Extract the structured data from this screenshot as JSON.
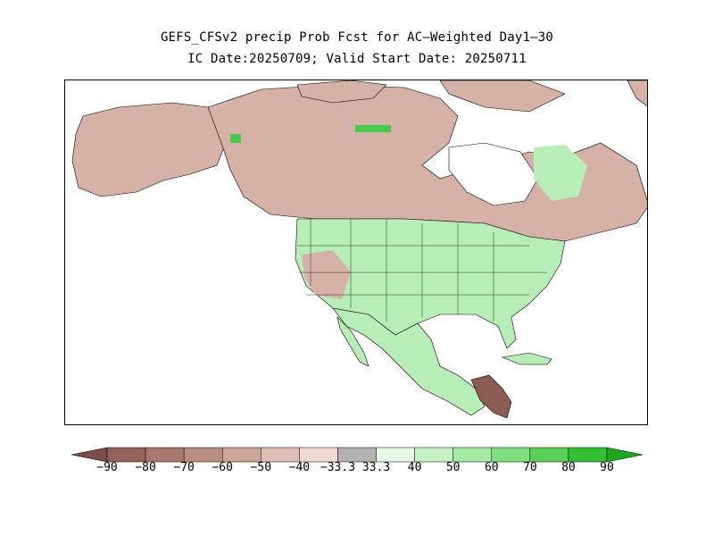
{
  "title": {
    "line1": "GEFS_CFSv2 precip Prob Fcst for AC—Weighted Day1–30",
    "line2": "IC Date:20250709; Valid Start Date: 20250711"
  },
  "legend": {
    "labels": [
      "−90",
      "−80",
      "−70",
      "−60",
      "−50",
      "−40",
      "−33.3",
      "33.3",
      "40",
      "50",
      "60",
      "70",
      "80",
      "90"
    ],
    "colors": [
      "#7a4e46",
      "#92635a",
      "#a8786e",
      "#bb8e84",
      "#cda59b",
      "#dfbeb5",
      "#efd9d2",
      "#b2b2b2",
      "#e6fbe6",
      "#c6f3c6",
      "#a3eaa3",
      "#7fdf7f",
      "#59d159",
      "#33c033",
      "#1aab1a"
    ]
  },
  "map": {
    "colors": {
      "water": "#ffffff",
      "dry_land": "#d6b1a6",
      "wet_land": "#b7eeb7",
      "very_wet": "#49c949",
      "very_dry": "#8c5c52",
      "outline": "#000000"
    }
  }
}
